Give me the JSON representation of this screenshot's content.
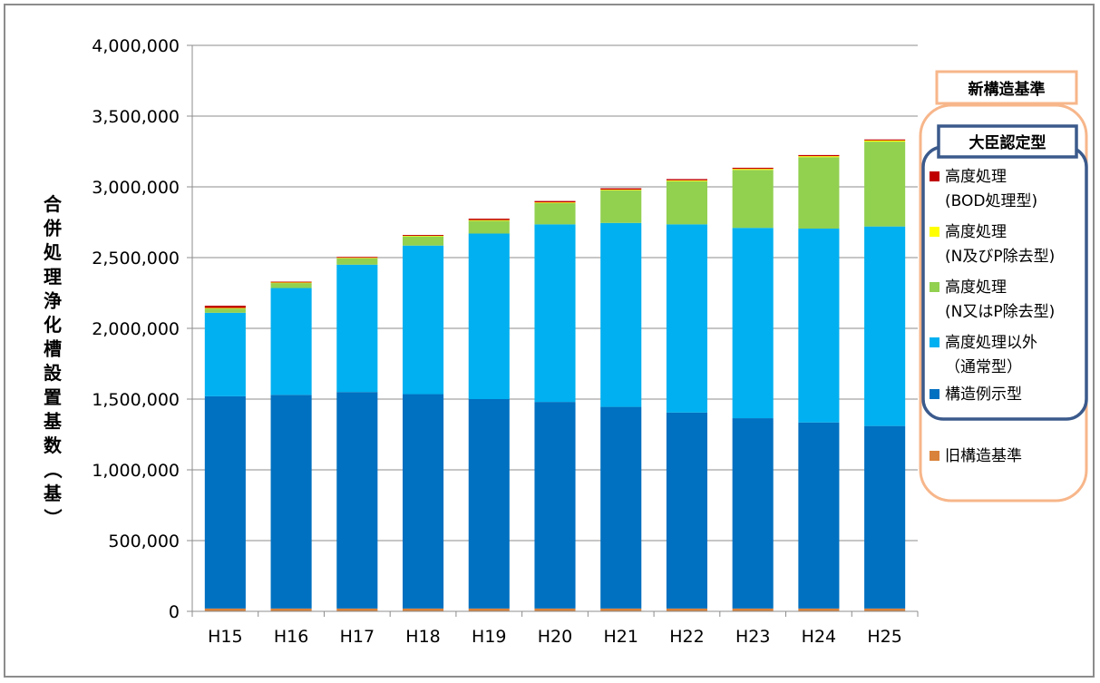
{
  "chart_data": {
    "type": "bar",
    "stacked": true,
    "categories": [
      "H15",
      "H16",
      "H17",
      "H18",
      "H19",
      "H20",
      "H21",
      "H22",
      "H23",
      "H24",
      "H25"
    ],
    "ylabel": "合併処理浄化槽設置基数（基）",
    "ylim": [
      0,
      4000000
    ],
    "yticks": [
      0,
      500000,
      1000000,
      1500000,
      2000000,
      2500000,
      3000000,
      3500000,
      4000000
    ],
    "ytick_labels": [
      "0",
      "500,000",
      "1,000,000",
      "1,500,000",
      "2,000,000",
      "2,500,000",
      "3,000,000",
      "3,500,000",
      "4,000,000"
    ],
    "grid": true,
    "legend_position": "right",
    "series": [
      {
        "name": "旧構造基準",
        "color": "#d9823b",
        "values": [
          20000,
          20000,
          20000,
          20000,
          20000,
          20000,
          20000,
          20000,
          20000,
          20000,
          20000
        ]
      },
      {
        "name": "構造例示型",
        "color": "#0070c0",
        "values": [
          1500000,
          1510000,
          1530000,
          1515000,
          1480000,
          1460000,
          1425000,
          1385000,
          1345000,
          1315000,
          1290000
        ]
      },
      {
        "name": "高度処理以外（通常型）",
        "color": "#00b0f0",
        "values": [
          590000,
          755000,
          900000,
          1050000,
          1170000,
          1255000,
          1300000,
          1330000,
          1345000,
          1370000,
          1410000
        ]
      },
      {
        "name": "高度処理(N又はP除去型)",
        "color": "#92d050",
        "values": [
          30000,
          35000,
          45000,
          65000,
          90000,
          150000,
          230000,
          305000,
          410000,
          505000,
          600000
        ]
      },
      {
        "name": "高度処理(N及びP除去型)",
        "color": "#ffff00",
        "values": [
          4000,
          4000,
          4000,
          4000,
          5000,
          5000,
          5000,
          6000,
          7000,
          7000,
          8000
        ]
      },
      {
        "name": "高度処理(BOD処理型)",
        "color": "#c00000",
        "values": [
          16000,
          6000,
          6000,
          6000,
          10000,
          10000,
          10000,
          9000,
          8000,
          8000,
          7000
        ]
      }
    ],
    "legend": {
      "outer_title": "新構造基準",
      "inner_title": "大臣認定型",
      "items": [
        {
          "lines": [
            "高度処理",
            "(BOD処理型)"
          ],
          "color": "#c00000"
        },
        {
          "lines": [
            "高度処理",
            "(N及びP除去型)"
          ],
          "color": "#ffff00"
        },
        {
          "lines": [
            "高度処理",
            "(N又はP除去型)"
          ],
          "color": "#92d050"
        },
        {
          "lines": [
            "高度処理以外",
            "（通常型）"
          ],
          "color": "#00b0f0"
        },
        {
          "lines": [
            "構造例示型"
          ],
          "color": "#0070c0"
        }
      ],
      "old_item": {
        "lines": [
          "旧構造基準"
        ],
        "color": "#d9823b"
      },
      "outer_border_color": "#f7b68a",
      "inner_border_color": "#3b5a8c"
    }
  }
}
